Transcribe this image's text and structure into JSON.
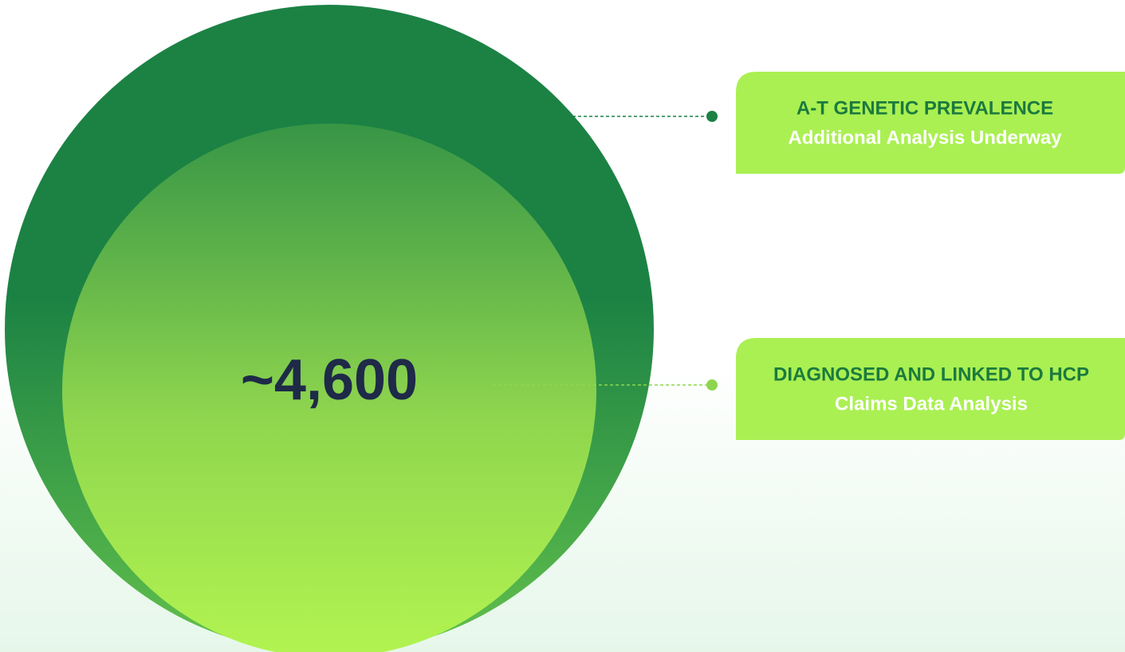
{
  "center_value": "~4,600",
  "labels": [
    {
      "title": "A-T GENETIC PREVALENCE",
      "subtitle": "Additional Analysis Underway"
    },
    {
      "title": "DIAGNOSED AND LINKED TO HCP",
      "subtitle": "Claims Data Analysis"
    }
  ]
}
